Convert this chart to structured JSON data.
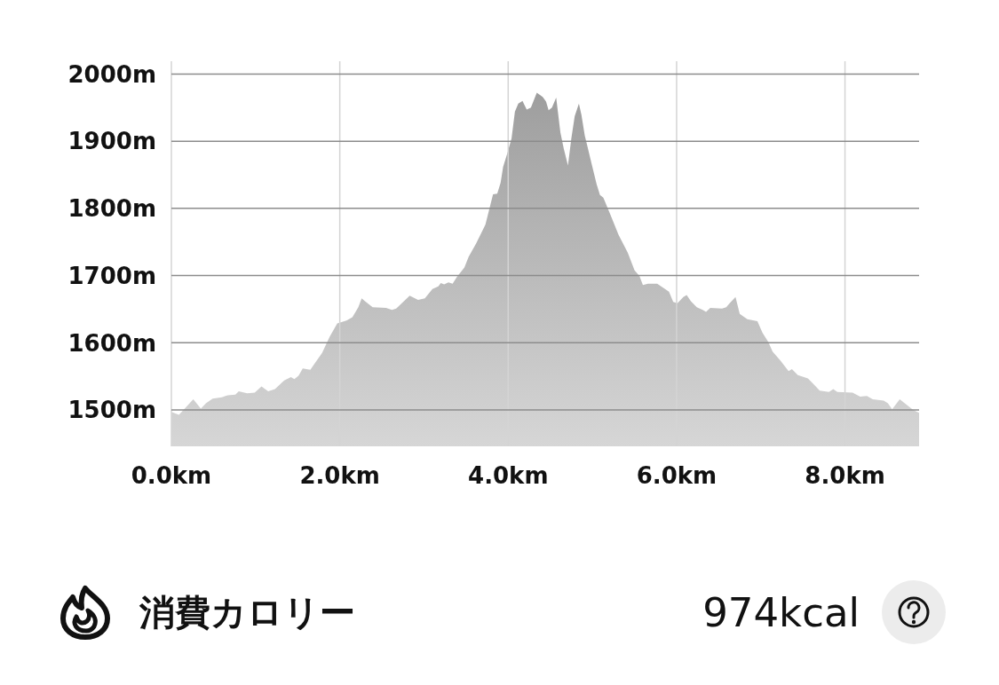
{
  "chart_data": {
    "type": "area",
    "x": [
      0.0,
      0.09,
      0.26,
      0.35,
      0.41,
      0.49,
      0.6,
      0.67,
      0.76,
      0.8,
      0.9,
      0.99,
      1.07,
      1.15,
      1.23,
      1.34,
      1.42,
      1.46,
      1.51,
      1.56,
      1.65,
      1.69,
      1.79,
      1.88,
      1.97,
      2.08,
      2.15,
      2.22,
      2.26,
      2.3,
      2.39,
      2.55,
      2.62,
      2.67,
      2.83,
      2.93,
      3.01,
      3.1,
      3.17,
      3.2,
      3.24,
      3.29,
      3.34,
      3.39,
      3.48,
      3.53,
      3.62,
      3.73,
      3.82,
      3.87,
      3.91,
      3.94,
      3.99,
      4.04,
      4.08,
      4.12,
      4.17,
      4.22,
      4.27,
      4.32,
      4.34,
      4.41,
      4.45,
      4.48,
      4.52,
      4.57,
      4.62,
      4.66,
      4.71,
      4.75,
      4.79,
      4.84,
      4.87,
      4.91,
      4.94,
      4.99,
      5.05,
      5.09,
      5.13,
      5.21,
      5.31,
      5.42,
      5.5,
      5.56,
      5.6,
      5.66,
      5.77,
      5.84,
      5.91,
      5.96,
      6.01,
      6.08,
      6.12,
      6.17,
      6.24,
      6.31,
      6.35,
      6.4,
      6.54,
      6.59,
      6.63,
      6.7,
      6.75,
      6.84,
      6.96,
      7.02,
      7.09,
      7.14,
      7.23,
      7.33,
      7.37,
      7.44,
      7.56,
      7.63,
      7.7,
      7.81,
      7.86,
      7.91,
      8.09,
      8.18,
      8.26,
      8.33,
      8.46,
      8.51,
      8.56,
      8.65,
      8.76,
      8.81,
      8.88
    ],
    "values": [
      1497,
      1493,
      1516,
      1502,
      1510,
      1517,
      1519,
      1522,
      1523,
      1528,
      1525,
      1526,
      1535,
      1528,
      1531,
      1544,
      1549,
      1546,
      1551,
      1562,
      1560,
      1567,
      1585,
      1609,
      1629,
      1633,
      1638,
      1653,
      1666,
      1662,
      1653,
      1652,
      1649,
      1651,
      1670,
      1664,
      1666,
      1680,
      1684,
      1689,
      1687,
      1690,
      1688,
      1698,
      1712,
      1728,
      1748,
      1776,
      1821,
      1822,
      1838,
      1862,
      1882,
      1904,
      1944,
      1956,
      1960,
      1947,
      1950,
      1966,
      1972,
      1966,
      1959,
      1946,
      1950,
      1965,
      1913,
      1889,
      1864,
      1904,
      1937,
      1956,
      1939,
      1908,
      1893,
      1867,
      1836,
      1820,
      1816,
      1792,
      1761,
      1734,
      1708,
      1699,
      1686,
      1688,
      1688,
      1682,
      1676,
      1661,
      1659,
      1668,
      1671,
      1662,
      1653,
      1649,
      1646,
      1652,
      1651,
      1653,
      1659,
      1668,
      1643,
      1635,
      1632,
      1615,
      1601,
      1587,
      1574,
      1558,
      1561,
      1552,
      1547,
      1538,
      1529,
      1527,
      1531,
      1527,
      1526,
      1520,
      1521,
      1516,
      1514,
      1510,
      1501,
      1516,
      1505,
      1500,
      1496
    ],
    "color": "#b4b4b4",
    "xlim": [
      0,
      8.88
    ],
    "ylim": [
      1446,
      2019
    ],
    "xticks": [
      {
        "value": 0,
        "label": "0.0km"
      },
      {
        "value": 2,
        "label": "2.0km"
      },
      {
        "value": 4,
        "label": "4.0km"
      },
      {
        "value": 6,
        "label": "6.0km"
      },
      {
        "value": 8,
        "label": "8.0km"
      }
    ],
    "yticks": [
      {
        "value": 1500,
        "label": "1500m"
      },
      {
        "value": 1600,
        "label": "1600m"
      },
      {
        "value": 1700,
        "label": "1700m"
      },
      {
        "value": 1800,
        "label": "1800m"
      },
      {
        "value": 1900,
        "label": "1900m"
      },
      {
        "value": 2000,
        "label": "2000m"
      }
    ],
    "grid": true,
    "annotations": [
      "消費カロリー",
      "974kcal"
    ]
  }
}
